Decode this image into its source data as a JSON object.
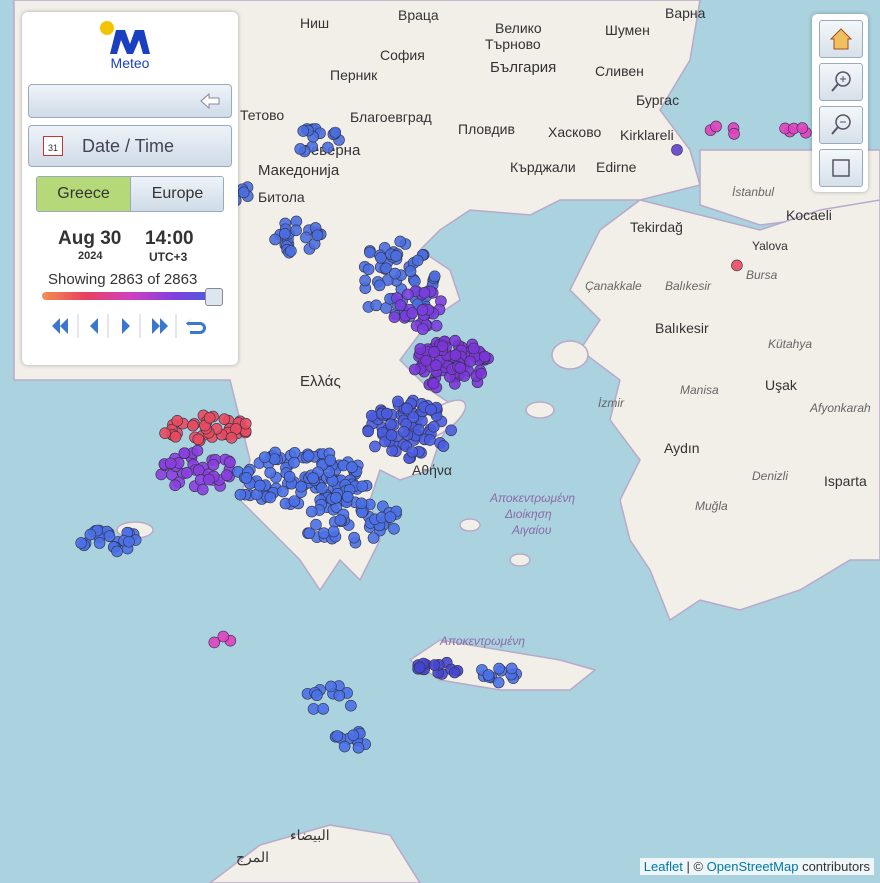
{
  "panel": {
    "logo": "Meteo",
    "date_time": "Date / Time",
    "tabs": [
      "Greece",
      "Europe"
    ],
    "date": "Aug 30",
    "year": "2024",
    "time": "14:00",
    "timezone": "UTC+3",
    "showing": "Showing 2863 of 2863"
  },
  "map_labels": [
    "Ниш",
    "Враца",
    "Велико",
    "Търново",
    "Варна",
    "София",
    "Шумен",
    "България",
    "Перник",
    "Сливен",
    "Бургас",
    "Пловдив",
    "Хасково",
    "Kirklareli",
    "Тетово",
    "Благоевград",
    "Кърджали",
    "Edirne",
    "Северна",
    "Македонија",
    "Битола",
    "İstanbul",
    "Tekirdağ",
    "Kocaeli",
    "Yalova",
    "Bursa",
    "Çanakkale",
    "Balıkesir",
    "Balıkesir",
    "Kütahya",
    "Ελλάς",
    "Αθήνα",
    "Manisa",
    "Uşak",
    "İzmir",
    "Afyonkarah",
    "Aydın",
    "Denizli",
    "Isparta",
    "Muğla",
    "Αποκεντρωμένη",
    "Διοίκηση",
    "Αιγαίου",
    "Αποκεντρωμένη",
    "البيضاء",
    "المرج"
  ],
  "attribution": {
    "leaflet": "Leaflet",
    "separator": "| ©",
    "osm": "OpenStreetMap",
    "contributors": "contributors"
  }
}
